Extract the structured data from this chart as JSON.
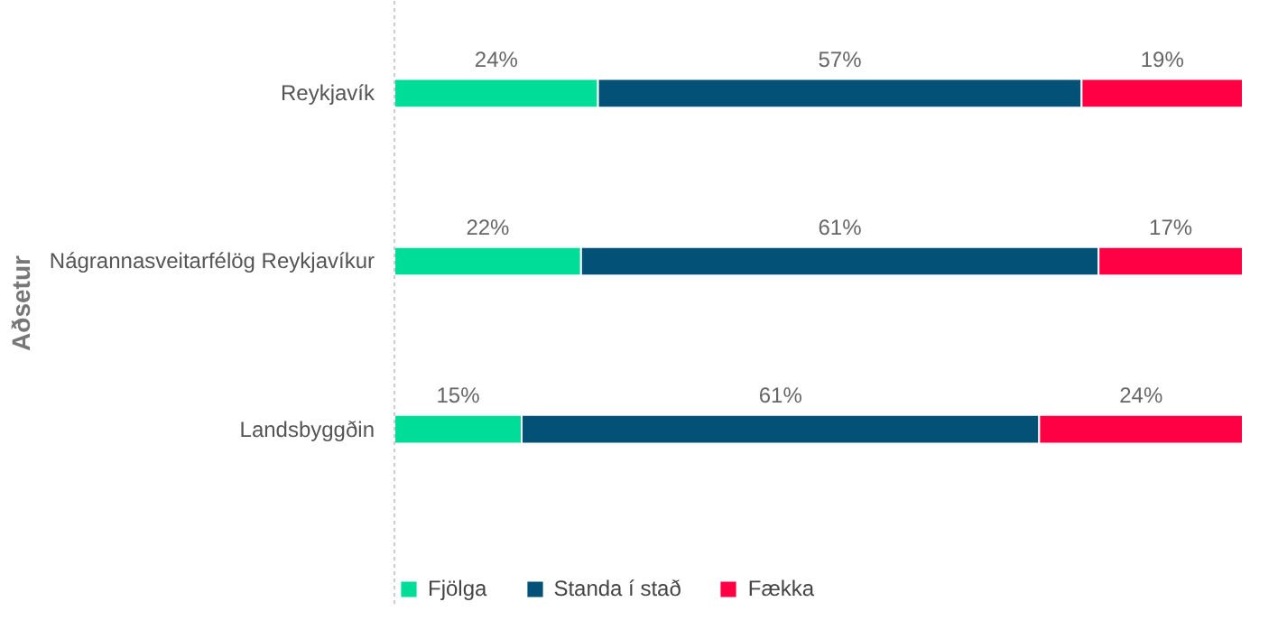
{
  "chart_data": {
    "type": "bar",
    "orientation": "horizontal",
    "stacked": true,
    "ylabel": "Aðsetur",
    "categories": [
      "Reykjavík",
      "Nágrannasveitarfélög Reykjavíkur",
      "Landsbyggðin"
    ],
    "xlim": [
      0,
      100
    ],
    "tick_labels": "y",
    "grid": false,
    "legend": "bottom left",
    "series": [
      {
        "name": "Fjölga",
        "color": "#00dd99",
        "values": [
          24,
          22,
          15
        ],
        "value_labels": [
          "24%",
          "22%",
          "15%"
        ]
      },
      {
        "name": "Standa í stað",
        "color": "#035177",
        "values": [
          57,
          61,
          61
        ],
        "value_labels": [
          "57%",
          "61%",
          "61%"
        ]
      },
      {
        "name": "Fækka",
        "color": "#ff0044",
        "values": [
          19,
          17,
          24
        ],
        "value_labels": [
          "19%",
          "17%",
          "24%"
        ]
      }
    ]
  }
}
